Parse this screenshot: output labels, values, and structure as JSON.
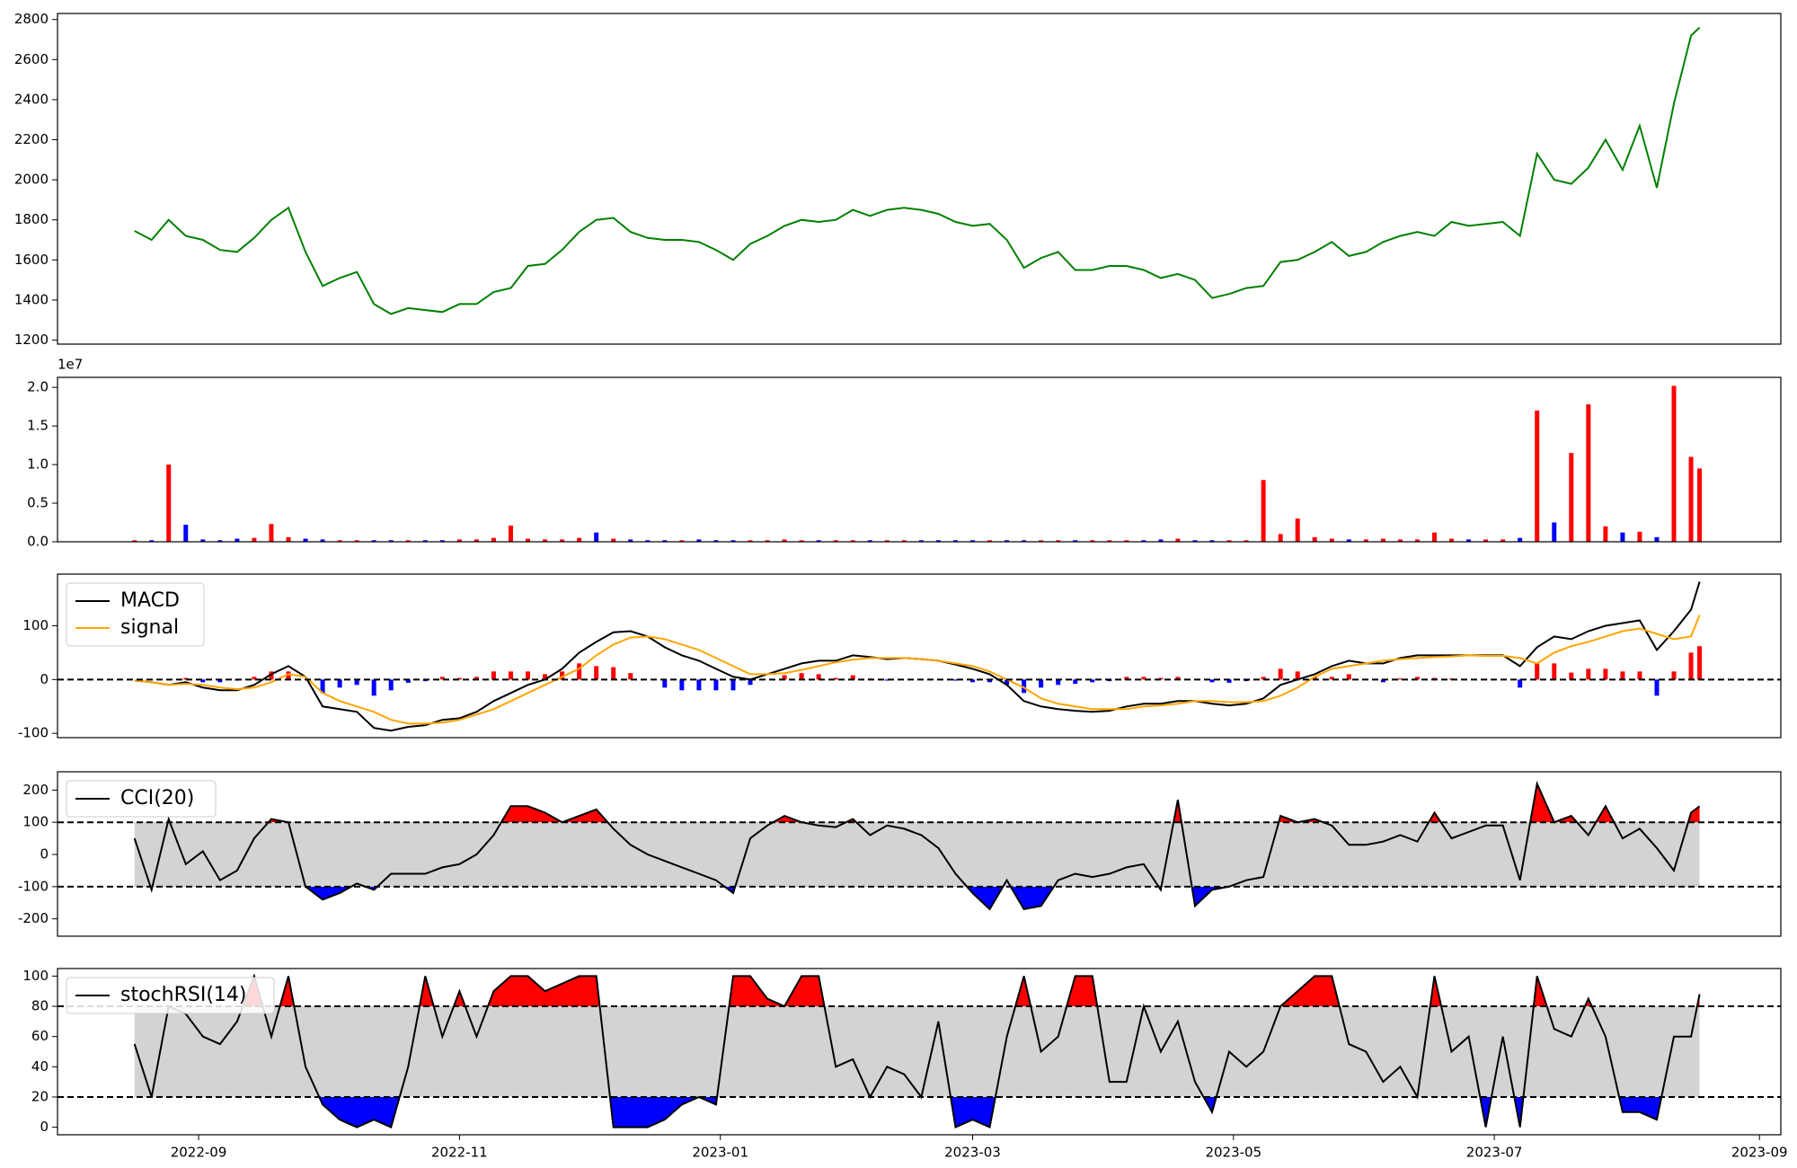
{
  "chart_data": {
    "x": [
      19221,
      19225,
      19229,
      19233,
      19237,
      19241,
      19245,
      19249,
      19253,
      19257,
      19261,
      19265,
      19269,
      19273,
      19277,
      19281,
      19285,
      19289,
      19293,
      19297,
      19301,
      19305,
      19309,
      19313,
      19317,
      19321,
      19325,
      19329,
      19333,
      19337,
      19341,
      19345,
      19349,
      19353,
      19357,
      19361,
      19365,
      19369,
      19373,
      19377,
      19381,
      19385,
      19389,
      19393,
      19397,
      19401,
      19405,
      19409,
      19413,
      19417,
      19421,
      19425,
      19429,
      19433,
      19437,
      19441,
      19445,
      19449,
      19453,
      19457,
      19461,
      19465,
      19469,
      19473,
      19477,
      19481,
      19485,
      19489,
      19493,
      19497,
      19501,
      19505,
      19509,
      19513,
      19517,
      19521,
      19525,
      19529,
      19533,
      19537,
      19541,
      19545,
      19549,
      19553,
      19557,
      19561,
      19565,
      19569,
      19573,
      19577,
      19581,
      19585,
      19587
    ],
    "xlim": [
      19203,
      19606
    ],
    "xticks": [
      {
        "value": 19236,
        "label": "2022-09"
      },
      {
        "value": 19297,
        "label": "2022-11"
      },
      {
        "value": 19358,
        "label": "2023-01"
      },
      {
        "value": 19417,
        "label": "2023-03"
      },
      {
        "value": 19478,
        "label": "2023-05"
      },
      {
        "value": 19539,
        "label": "2023-07"
      },
      {
        "value": 19601,
        "label": "2023-09"
      }
    ],
    "panels": [
      {
        "type": "line",
        "ylim": [
          1180,
          2830
        ],
        "yticks": [
          1200,
          1400,
          1600,
          1800,
          2000,
          2200,
          2400,
          2600,
          2800
        ],
        "series": [
          {
            "color": "green",
            "values": [
              1745,
              1700,
              1800,
              1720,
              1700,
              1650,
              1640,
              1710,
              1800,
              1860,
              1640,
              1470,
              1510,
              1540,
              1380,
              1330,
              1360,
              1350,
              1340,
              1380,
              1380,
              1440,
              1460,
              1570,
              1580,
              1650,
              1740,
              1800,
              1810,
              1740,
              1710,
              1700,
              1700,
              1690,
              1650,
              1600,
              1680,
              1720,
              1770,
              1800,
              1790,
              1800,
              1850,
              1820,
              1850,
              1860,
              1850,
              1830,
              1790,
              1770,
              1780,
              1700,
              1560,
              1610,
              1640,
              1550,
              1550,
              1570,
              1570,
              1550,
              1510,
              1530,
              1500,
              1410,
              1430,
              1460,
              1470,
              1590,
              1600,
              1640,
              1690,
              1620,
              1640,
              1690,
              1720,
              1740,
              1720,
              1790,
              1770,
              1780,
              1790,
              1720,
              2130,
              2000,
              1980,
              2060,
              2200,
              2050,
              2270,
              1960,
              2380,
              2720,
              2760
            ]
          }
        ]
      },
      {
        "type": "bar",
        "offset_text": "1e7",
        "ylim": [
          0,
          2.13
        ],
        "yticks": [
          {
            "value": 0,
            "label": "0.0"
          },
          0.5,
          {
            "value": 1,
            "label": "1.0"
          },
          1.5,
          {
            "value": 2,
            "label": "2.0"
          }
        ],
        "values": [
          0.02,
          0.02,
          1.0,
          0.22,
          0.03,
          0.02,
          0.04,
          0.05,
          0.23,
          0.06,
          0.04,
          0.03,
          0.02,
          0.02,
          0.02,
          0.02,
          0.02,
          0.02,
          0.02,
          0.03,
          0.03,
          0.05,
          0.21,
          0.04,
          0.03,
          0.03,
          0.05,
          0.12,
          0.04,
          0.03,
          0.02,
          0.02,
          0.02,
          0.03,
          0.02,
          0.02,
          0.02,
          0.02,
          0.03,
          0.02,
          0.02,
          0.02,
          0.02,
          0.02,
          0.02,
          0.02,
          0.02,
          0.02,
          0.02,
          0.02,
          0.02,
          0.02,
          0.02,
          0.02,
          0.02,
          0.02,
          0.02,
          0.02,
          0.02,
          0.02,
          0.03,
          0.04,
          0.02,
          0.02,
          0.02,
          0.02,
          0.8,
          0.1,
          0.3,
          0.06,
          0.04,
          0.03,
          0.03,
          0.04,
          0.03,
          0.03,
          0.12,
          0.04,
          0.03,
          0.03,
          0.03,
          0.05,
          1.7,
          0.25,
          1.15,
          1.78,
          0.2,
          0.12,
          0.13,
          0.06,
          2.02,
          1.1,
          0.95
        ],
        "colors": [
          "red",
          "blue",
          "red",
          "blue",
          "blue",
          "blue",
          "blue",
          "red",
          "red",
          "red",
          "blue",
          "blue",
          "red",
          "red",
          "blue",
          "blue",
          "red",
          "blue",
          "blue",
          "red",
          "red",
          "red",
          "red",
          "red",
          "red",
          "red",
          "red",
          "blue",
          "red",
          "blue",
          "blue",
          "blue",
          "red",
          "blue",
          "blue",
          "blue",
          "red",
          "red",
          "red",
          "red",
          "blue",
          "red",
          "red",
          "blue",
          "red",
          "red",
          "blue",
          "blue",
          "blue",
          "blue",
          "red",
          "blue",
          "blue",
          "red",
          "red",
          "blue",
          "red",
          "red",
          "red",
          "blue",
          "blue",
          "red",
          "blue",
          "blue",
          "red",
          "red",
          "red",
          "red",
          "red",
          "red",
          "red",
          "blue",
          "red",
          "red",
          "red",
          "red",
          "red",
          "red",
          "blue",
          "red",
          "red",
          "blue",
          "red",
          "blue",
          "red",
          "red",
          "red",
          "blue",
          "red",
          "blue",
          "red",
          "red",
          "red"
        ]
      },
      {
        "type": "line",
        "ylim": [
          -108,
          196
        ],
        "yticks": [
          -100,
          0,
          100
        ],
        "hlines": [
          0
        ],
        "legend": "upper left",
        "histogram": {
          "pos_color": "red",
          "neg_color": "blue",
          "values": [
            0,
            0,
            0,
            3,
            -5,
            -5,
            -2,
            5,
            15,
            15,
            0,
            -25,
            -15,
            -10,
            -30,
            -20,
            -6,
            -3,
            5,
            3,
            5,
            15,
            15,
            15,
            10,
            15,
            30,
            25,
            23,
            12,
            0,
            -15,
            -20,
            -20,
            -20,
            -20,
            -10,
            0,
            8,
            12,
            10,
            3,
            8,
            2,
            -2,
            0,
            0,
            0,
            -2,
            -5,
            -5,
            -10,
            -25,
            -15,
            -10,
            -8,
            -5,
            -3,
            5,
            5,
            3,
            5,
            0,
            -5,
            -6,
            -3,
            5,
            20,
            15,
            5,
            5,
            10,
            0,
            -5,
            2,
            5,
            3,
            2,
            0,
            1,
            1,
            -15,
            30,
            30,
            13,
            20,
            20,
            15,
            15,
            -30,
            15,
            50,
            62
          ]
        },
        "series": [
          {
            "name": "MACD",
            "color": "black",
            "values": [
              -2,
              -5,
              -10,
              -5,
              -15,
              -20,
              -20,
              -10,
              10,
              25,
              5,
              -50,
              -55,
              -60,
              -90,
              -95,
              -88,
              -85,
              -75,
              -72,
              -60,
              -40,
              -25,
              -10,
              0,
              20,
              50,
              70,
              88,
              90,
              80,
              60,
              45,
              35,
              20,
              5,
              0,
              10,
              20,
              30,
              35,
              35,
              45,
              42,
              38,
              40,
              38,
              35,
              28,
              20,
              10,
              -10,
              -40,
              -50,
              -55,
              -58,
              -60,
              -58,
              -50,
              -45,
              -45,
              -40,
              -40,
              -45,
              -48,
              -45,
              -35,
              -10,
              0,
              10,
              25,
              35,
              30,
              30,
              40,
              45,
              45,
              45,
              45,
              45,
              45,
              25,
              60,
              80,
              75,
              90,
              100,
              105,
              110,
              55,
              90,
              130,
              182
            ]
          },
          {
            "name": "signal",
            "color": "orange",
            "values": [
              -2,
              -5,
              -10,
              -8,
              -10,
              -15,
              -18,
              -15,
              -5,
              10,
              5,
              -25,
              -40,
              -50,
              -60,
              -75,
              -82,
              -82,
              -80,
              -75,
              -65,
              -55,
              -40,
              -25,
              -10,
              5,
              20,
              45,
              65,
              78,
              80,
              75,
              65,
              55,
              40,
              25,
              10,
              10,
              12,
              18,
              25,
              32,
              37,
              40,
              40,
              40,
              38,
              35,
              30,
              25,
              15,
              0,
              -15,
              -35,
              -45,
              -50,
              -55,
              -55,
              -55,
              -50,
              -48,
              -45,
              -40,
              -40,
              -42,
              -42,
              -40,
              -30,
              -15,
              5,
              20,
              25,
              30,
              35,
              38,
              40,
              42,
              43,
              45,
              44,
              44,
              40,
              30,
              50,
              62,
              70,
              80,
              90,
              95,
              85,
              75,
              80,
              120
            ]
          }
        ]
      },
      {
        "type": "line",
        "ylim": [
          -254,
          257
        ],
        "yticks": [
          -200,
          -100,
          0,
          100,
          200
        ],
        "hlines": [
          100,
          -100
        ],
        "legend": "upper left",
        "band": {
          "range": [
            -100,
            100
          ],
          "color": "lightgray"
        },
        "series": [
          {
            "name": "CCI(20)",
            "color": "black",
            "fill_above": {
              "level": 100,
              "color": "red"
            },
            "fill_below": {
              "level": -100,
              "color": "blue"
            },
            "values": [
              50,
              -110,
              110,
              -30,
              10,
              -80,
              -50,
              50,
              110,
              100,
              -100,
              -140,
              -120,
              -90,
              -110,
              -60,
              -60,
              -60,
              -40,
              -30,
              0,
              60,
              150,
              150,
              130,
              100,
              120,
              140,
              80,
              30,
              0,
              -20,
              -40,
              -60,
              -80,
              -120,
              50,
              90,
              120,
              100,
              90,
              85,
              110,
              60,
              90,
              80,
              60,
              20,
              -60,
              -120,
              -170,
              -80,
              -170,
              -160,
              -80,
              -60,
              -70,
              -60,
              -40,
              -30,
              -110,
              170,
              -160,
              -110,
              -100,
              -80,
              -70,
              120,
              100,
              110,
              90,
              30,
              30,
              40,
              60,
              40,
              130,
              50,
              70,
              90,
              90,
              -80,
              220,
              100,
              120,
              60,
              150,
              50,
              80,
              20,
              -50,
              130,
              150
            ]
          }
        ]
      },
      {
        "type": "line",
        "ylim": [
          -5,
          105
        ],
        "yticks": [
          0,
          20,
          40,
          60,
          80,
          100
        ],
        "hlines": [
          80,
          20
        ],
        "legend": "upper left",
        "band": {
          "range": [
            20,
            80
          ],
          "color": "lightgray"
        },
        "series": [
          {
            "name": "stochRSI(14)",
            "color": "black",
            "fill_above": {
              "level": 80,
              "color": "red"
            },
            "fill_below": {
              "level": 20,
              "color": "blue"
            },
            "values": [
              55,
              20,
              80,
              75,
              60,
              55,
              70,
              100,
              60,
              100,
              40,
              15,
              5,
              0,
              5,
              0,
              40,
              100,
              60,
              90,
              60,
              90,
              100,
              100,
              90,
              95,
              100,
              100,
              0,
              0,
              0,
              5,
              15,
              20,
              15,
              100,
              100,
              85,
              80,
              100,
              100,
              40,
              45,
              20,
              40,
              35,
              20,
              70,
              0,
              5,
              0,
              60,
              100,
              50,
              60,
              100,
              100,
              30,
              30,
              80,
              50,
              70,
              30,
              10,
              50,
              40,
              50,
              80,
              90,
              100,
              100,
              55,
              50,
              30,
              40,
              20,
              100,
              50,
              60,
              0,
              60,
              0,
              100,
              65,
              60,
              85,
              60,
              10,
              10,
              5,
              60,
              60,
              88
            ]
          }
        ]
      }
    ]
  }
}
